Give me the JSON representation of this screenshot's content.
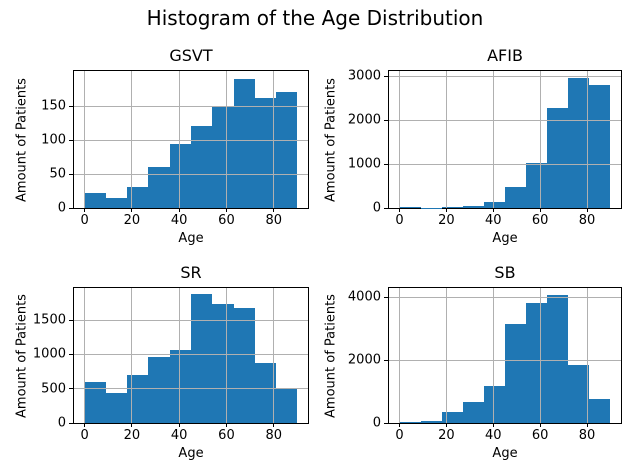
{
  "figure": {
    "title": "Histogram of the Age Distribution",
    "bar_color": "#1f77b4",
    "grid_color": "#b0b0b0",
    "grid_above_bars": true
  },
  "chart_data": [
    {
      "type": "bar",
      "subtype": "histogram",
      "title": "GSVT",
      "xlabel": "Age",
      "ylabel": "Amount of Patients",
      "bin_edges": [
        0,
        9,
        18,
        27,
        36,
        45,
        54,
        63,
        72,
        81,
        90
      ],
      "values": [
        22,
        15,
        31,
        60,
        95,
        121,
        150,
        190,
        162,
        171
      ],
      "xticks": [
        0,
        20,
        40,
        60,
        80
      ],
      "yticks": [
        0,
        50,
        100,
        150
      ],
      "xlim": [
        -4.5,
        94.5
      ],
      "ylim": [
        0,
        202
      ],
      "grid": true
    },
    {
      "type": "bar",
      "subtype": "histogram",
      "title": "AFIB",
      "xlabel": "Age",
      "ylabel": "Amount of Patients",
      "bin_edges": [
        0,
        9,
        18,
        27,
        36,
        45,
        54,
        63,
        72,
        81,
        90
      ],
      "values": [
        25,
        8,
        28,
        55,
        140,
        470,
        1030,
        2280,
        2950,
        2800
      ],
      "xticks": [
        0,
        20,
        40,
        60,
        80
      ],
      "yticks": [
        0,
        1000,
        2000,
        3000
      ],
      "xlim": [
        -4.5,
        94.5
      ],
      "ylim": [
        0,
        3120
      ],
      "grid": true
    },
    {
      "type": "bar",
      "subtype": "histogram",
      "title": "SR",
      "xlabel": "Age",
      "ylabel": "Amount of Patients",
      "bin_edges": [
        0,
        9,
        18,
        27,
        36,
        45,
        54,
        63,
        72,
        81,
        90
      ],
      "values": [
        600,
        440,
        700,
        970,
        1060,
        1880,
        1730,
        1685,
        875,
        515
      ],
      "xticks": [
        0,
        20,
        40,
        60,
        80
      ],
      "yticks": [
        0,
        500,
        1000,
        1500
      ],
      "xlim": [
        -4.5,
        94.5
      ],
      "ylim": [
        0,
        1970
      ],
      "grid": true
    },
    {
      "type": "bar",
      "subtype": "histogram",
      "title": "SB",
      "xlabel": "Age",
      "ylabel": "Amount of Patients",
      "bin_edges": [
        0,
        9,
        18,
        27,
        36,
        45,
        54,
        63,
        72,
        81,
        90
      ],
      "values": [
        20,
        80,
        340,
        660,
        1190,
        3150,
        3830,
        4090,
        1840,
        770
      ],
      "xticks": [
        0,
        20,
        40,
        60,
        80
      ],
      "yticks": [
        0,
        2000,
        4000
      ],
      "xlim": [
        -4.5,
        94.5
      ],
      "ylim": [
        0,
        4300
      ],
      "grid": true
    }
  ]
}
